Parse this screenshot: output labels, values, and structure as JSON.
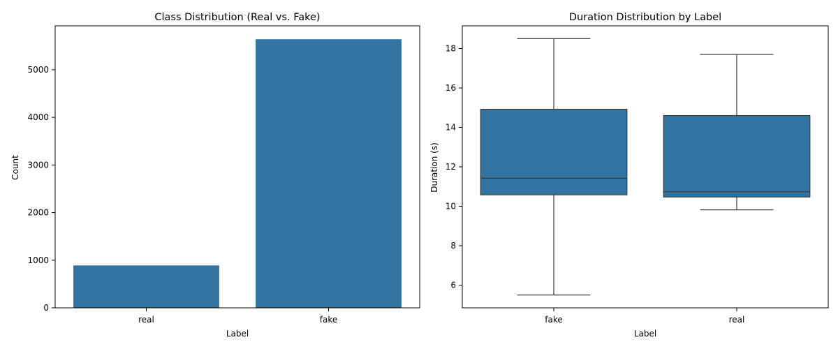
{
  "colors": {
    "bar": "#3274a1",
    "box": "#3274a1",
    "line": "#3d3d3d",
    "axes": "#000000"
  },
  "chart_data": [
    {
      "type": "bar",
      "title": "Class Distribution (Real vs. Fake)",
      "xlabel": "Label",
      "ylabel": "Count",
      "categories": [
        "real",
        "fake"
      ],
      "values": [
        890,
        5640
      ],
      "ylim": [
        0,
        5922
      ],
      "yticks": [
        0,
        1000,
        2000,
        3000,
        4000,
        5000
      ],
      "grid": false
    },
    {
      "type": "box",
      "title": "Duration Distribution by Label",
      "xlabel": "Label",
      "ylabel": "Duration (s)",
      "categories": [
        "fake",
        "real"
      ],
      "boxes": [
        {
          "whisker_low": 5.5,
          "q1": 10.58,
          "median": 11.42,
          "q3": 14.92,
          "whisker_high": 18.5
        },
        {
          "whisker_low": 9.82,
          "q1": 10.47,
          "median": 10.74,
          "q3": 14.6,
          "whisker_high": 17.7
        }
      ],
      "ylim": [
        4.85,
        19.15
      ],
      "yticks": [
        6,
        8,
        10,
        12,
        14,
        16,
        18
      ],
      "grid": false
    }
  ]
}
